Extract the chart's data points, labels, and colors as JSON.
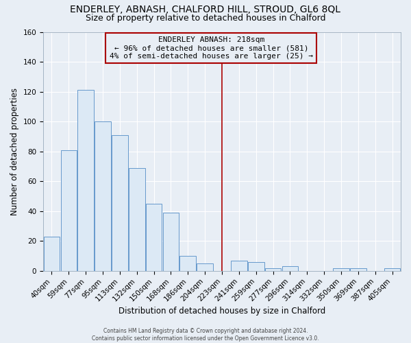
{
  "title": "ENDERLEY, ABNASH, CHALFORD HILL, STROUD, GL6 8QL",
  "subtitle": "Size of property relative to detached houses in Chalford",
  "xlabel": "Distribution of detached houses by size in Chalford",
  "ylabel": "Number of detached properties",
  "bar_labels": [
    "40sqm",
    "59sqm",
    "77sqm",
    "95sqm",
    "113sqm",
    "132sqm",
    "150sqm",
    "168sqm",
    "186sqm",
    "204sqm",
    "223sqm",
    "241sqm",
    "259sqm",
    "277sqm",
    "296sqm",
    "314sqm",
    "332sqm",
    "350sqm",
    "369sqm",
    "387sqm",
    "405sqm"
  ],
  "bar_values": [
    23,
    81,
    121,
    100,
    91,
    69,
    45,
    39,
    10,
    5,
    0,
    7,
    6,
    2,
    3,
    0,
    0,
    2,
    2,
    0,
    2
  ],
  "bar_color": "#dce9f5",
  "bar_edge_color": "#6699cc",
  "vline_x": 10.0,
  "vline_color": "#aa0000",
  "ylim": [
    0,
    160
  ],
  "yticks": [
    0,
    20,
    40,
    60,
    80,
    100,
    120,
    140,
    160
  ],
  "annotation_title": "ENDERLEY ABNASH: 218sqm",
  "annotation_line1": "← 96% of detached houses are smaller (581)",
  "annotation_line2": "4% of semi-detached houses are larger (25) →",
  "annotation_box_color": "#aa0000",
  "footer_line1": "Contains HM Land Registry data © Crown copyright and database right 2024.",
  "footer_line2": "Contains public sector information licensed under the Open Government Licence v3.0.",
  "background_color": "#e8eef5",
  "grid_color": "#ffffff",
  "title_fontsize": 10,
  "subtitle_fontsize": 9,
  "axis_label_fontsize": 8.5,
  "tick_fontsize": 7.5,
  "ann_fontsize": 8
}
